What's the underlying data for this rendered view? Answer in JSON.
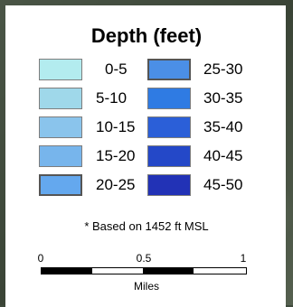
{
  "legend": {
    "title": "Depth (feet)",
    "items": [
      {
        "label": "0-5",
        "color": "#b3ecef"
      },
      {
        "label": "5-10",
        "color": "#9fd8ea"
      },
      {
        "label": "10-15",
        "color": "#8ac4ec"
      },
      {
        "label": "15-20",
        "color": "#77b5ec"
      },
      {
        "label": "20-25",
        "color": "#64a8ee"
      },
      {
        "label": "25-30",
        "color": "#4b8fe6"
      },
      {
        "label": "30-35",
        "color": "#2f7be3"
      },
      {
        "label": "35-40",
        "color": "#2b5fd8"
      },
      {
        "label": "40-45",
        "color": "#2448c8"
      },
      {
        "label": "45-50",
        "color": "#2232b6"
      }
    ],
    "note": "* Based on 1452 ft MSL"
  },
  "scale_bar": {
    "ticks": [
      "0",
      "0.5",
      "1"
    ],
    "unit": "Miles"
  }
}
